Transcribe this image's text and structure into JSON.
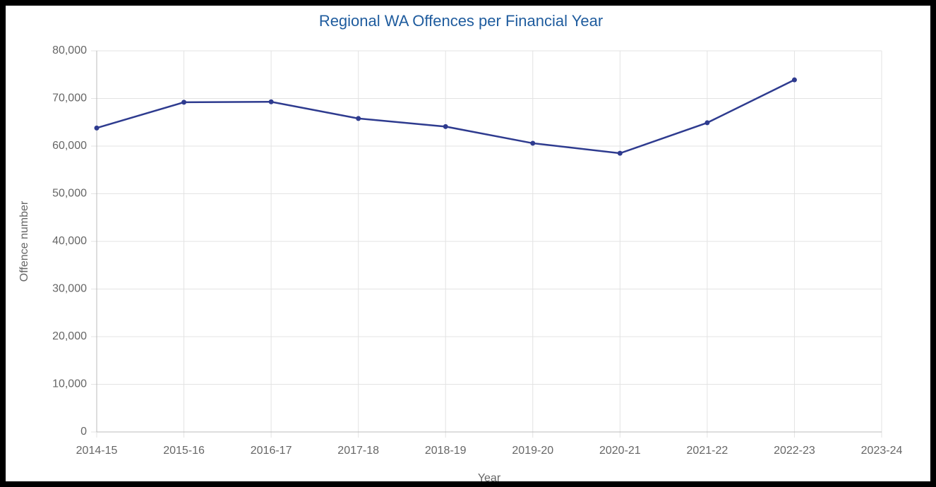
{
  "chart_data": {
    "type": "line",
    "title": "Regional WA Offences per Financial Year",
    "x_label": "Year",
    "y_label": "Offence number",
    "categories": [
      "2014-15",
      "2015-16",
      "2016-17",
      "2017-18",
      "2018-19",
      "2019-20",
      "2020-21",
      "2021-22",
      "2022-23",
      "2023-24"
    ],
    "series": [
      {
        "name": "Offences",
        "color": "#2e3b8f",
        "values": [
          63800,
          69200,
          69300,
          65800,
          64100,
          60600,
          58500,
          64900,
          73900,
          null
        ]
      }
    ],
    "ylim": [
      0,
      80000
    ],
    "yticks": [
      0,
      {
        "value": 10000,
        "label": "10,000"
      },
      {
        "value": 20000,
        "label": "20,000"
      },
      {
        "value": 30000,
        "label": "30,000"
      },
      {
        "value": 40000,
        "label": "40,000"
      },
      {
        "value": 50000,
        "label": "50,000"
      },
      {
        "value": 60000,
        "label": "60,000"
      },
      {
        "value": 70000,
        "label": "70,000"
      },
      {
        "value": 80000,
        "label": "80,000"
      }
    ],
    "grid": true
  }
}
